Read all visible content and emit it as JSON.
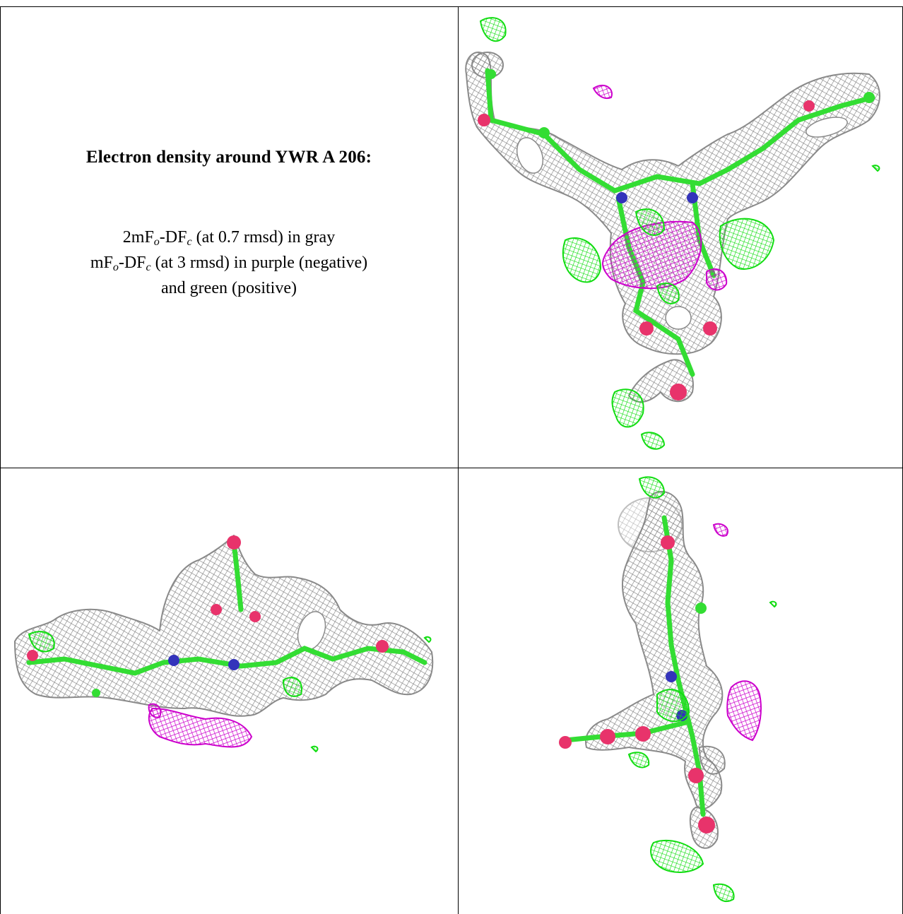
{
  "caption": {
    "title": "Electron density around YWR A 206:",
    "line1_prefix": "2mF",
    "line1_sub_o": "o",
    "line1_mid": "-DF",
    "line1_sub_c": "c",
    "line1_suffix": " (at 0.7 rmsd) in gray",
    "line2_prefix": "mF",
    "line2_sub_o": "o",
    "line2_mid": "-DF",
    "line2_sub_c": "c",
    "line2_suffix": " (at 3 rmsd) in purple (negative)",
    "line3": "and green (positive)"
  },
  "colors": {
    "map_2fofc": "#8a8a8a",
    "map_fofc_negative": "#cc00cc",
    "map_fofc_positive": "#22ee22",
    "carbon": "#33dd33",
    "oxygen": "#e8336b",
    "nitrogen": "#3333bb",
    "grid_line": "#000000"
  },
  "views": [
    {
      "name": "view-top-right"
    },
    {
      "name": "view-bottom-left"
    },
    {
      "name": "view-bottom-right"
    }
  ]
}
